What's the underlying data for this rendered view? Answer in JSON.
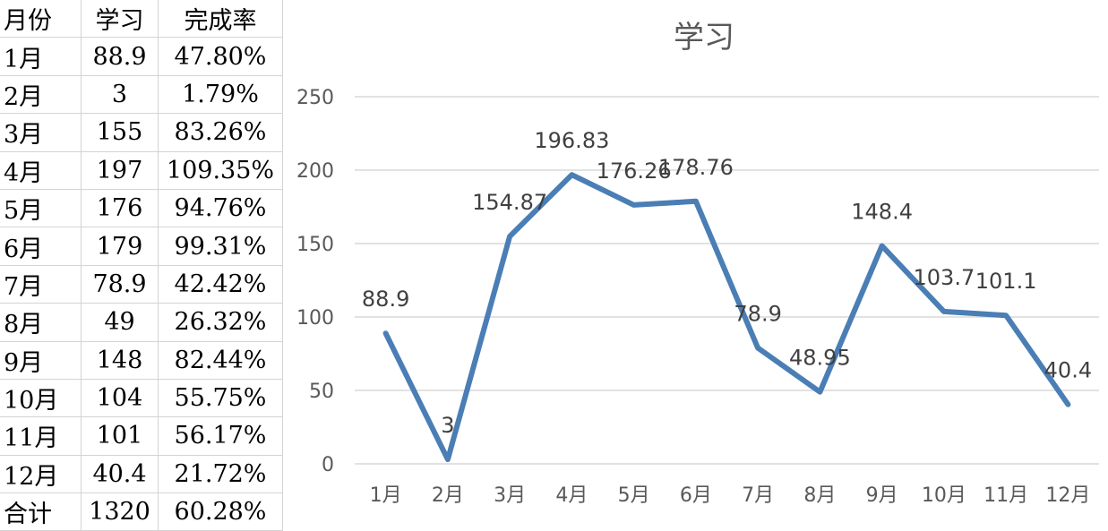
{
  "table": {
    "headers": [
      "月份",
      "学习",
      "完成率"
    ],
    "rows": [
      [
        "1月",
        "88.9",
        "47.80%"
      ],
      [
        "2月",
        "3",
        "1.79%"
      ],
      [
        "3月",
        "155",
        "83.26%"
      ],
      [
        "4月",
        "197",
        "109.35%"
      ],
      [
        "5月",
        "176",
        "94.76%"
      ],
      [
        "6月",
        "179",
        "99.31%"
      ],
      [
        "7月",
        "78.9",
        "42.42%"
      ],
      [
        "8月",
        "49",
        "26.32%"
      ],
      [
        "9月",
        "148",
        "82.44%"
      ],
      [
        "10月",
        "104",
        "55.75%"
      ],
      [
        "11月",
        "101",
        "56.17%"
      ],
      [
        "12月",
        "40.4",
        "21.72%"
      ],
      [
        "合计",
        "1320",
        "60.28%"
      ]
    ]
  },
  "chart_data": {
    "type": "line",
    "title": "学习",
    "categories": [
      "1月",
      "2月",
      "3月",
      "4月",
      "5月",
      "6月",
      "7月",
      "8月",
      "9月",
      "10月",
      "11月",
      "12月"
    ],
    "values": [
      88.9,
      3,
      154.87,
      196.83,
      176.26,
      178.76,
      78.9,
      48.95,
      148.4,
      103.7,
      101.1,
      40.4
    ],
    "data_labels": [
      "88.9",
      "3",
      "154.87",
      "196.83",
      "176.26",
      "178.76",
      "78.9",
      "48.95",
      "148.4",
      "103.7",
      "101.1",
      "40.4"
    ],
    "yticks": [
      "0",
      "50",
      "100",
      "150",
      "200",
      "250"
    ],
    "ylim": [
      0,
      250
    ],
    "grid": true,
    "legend": "none",
    "line_color": "#4a7eb5"
  }
}
